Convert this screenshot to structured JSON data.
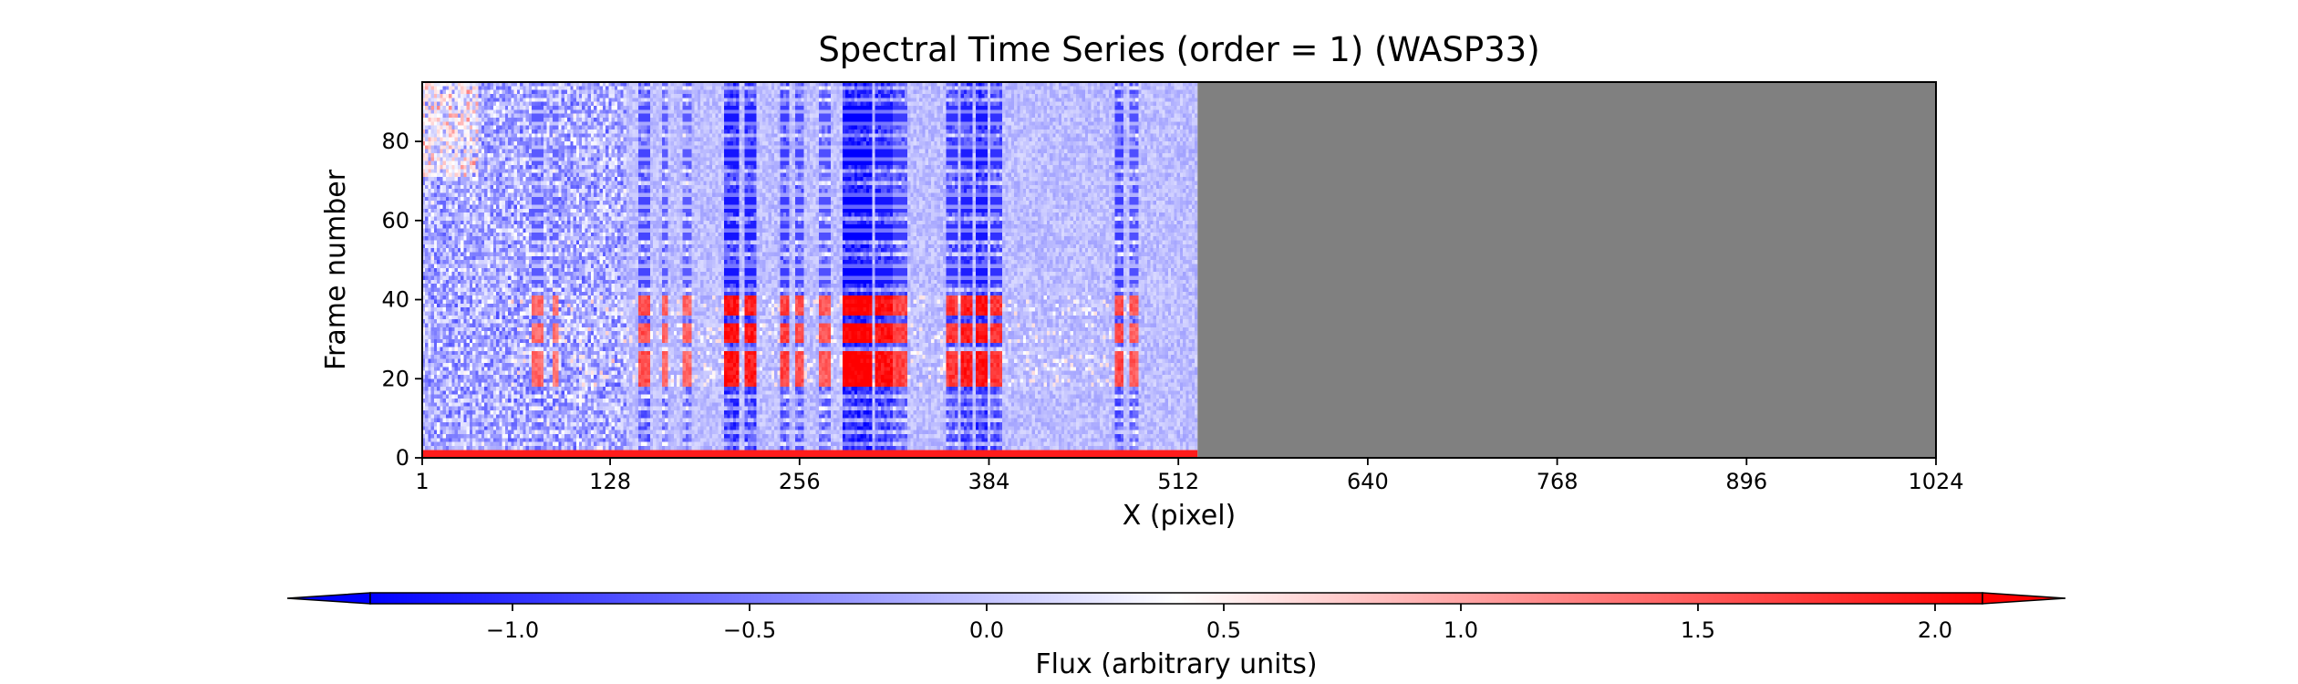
{
  "chart_data": {
    "type": "heatmap",
    "title": "Spectral Time Series (order = 1) (WASP33)",
    "xlabel": "X (pixel)",
    "ylabel": "Frame number",
    "xlim": [
      1,
      1024
    ],
    "ylim": [
      0,
      95
    ],
    "xticks": [
      1,
      128,
      256,
      384,
      512,
      640,
      768,
      896,
      1024
    ],
    "yticks": [
      0,
      20,
      40,
      60,
      80
    ],
    "data_x_range": [
      1,
      525
    ],
    "masked_x_range": [
      525,
      1024
    ],
    "masked_color": "#808080",
    "colorbar": {
      "label": "Flux (arbitrary units)",
      "vmin": -1.3,
      "vmax": 2.1,
      "ticks": [
        -1.0,
        -0.5,
        0.0,
        0.5,
        1.0,
        1.5,
        2.0
      ],
      "tick_labels": [
        "−1.0",
        "−0.5",
        "0.0",
        "0.5",
        "1.0",
        "1.5",
        "2.0"
      ],
      "center": 0.25,
      "colormap": "bwr",
      "extend": "both",
      "low_color": "#0000ff",
      "mid_color": "#ffffff",
      "high_color": "#ff0000"
    },
    "absorption_bands": [
      {
        "x": [
          76,
          82
        ],
        "depth": 0.6
      },
      {
        "x": [
          89,
          92
        ],
        "depth": 0.5
      },
      {
        "x": [
          148,
          155
        ],
        "depth": 0.8
      },
      {
        "x": [
          164,
          167
        ],
        "depth": 0.6
      },
      {
        "x": [
          178,
          182
        ],
        "depth": 0.6
      },
      {
        "x": [
          205,
          215
        ],
        "depth": 1.3
      },
      {
        "x": [
          220,
          226
        ],
        "depth": 1.2
      },
      {
        "x": [
          243,
          248
        ],
        "depth": 0.9
      },
      {
        "x": [
          254,
          258
        ],
        "depth": 0.8
      },
      {
        "x": [
          270,
          276
        ],
        "depth": 0.7
      },
      {
        "x": [
          285,
          305
        ],
        "depth": 1.5
      },
      {
        "x": [
          308,
          318
        ],
        "depth": 1.3
      },
      {
        "x": [
          320,
          328
        ],
        "depth": 0.9
      },
      {
        "x": [
          355,
          362
        ],
        "depth": 1.0
      },
      {
        "x": [
          366,
          372
        ],
        "depth": 1.2
      },
      {
        "x": [
          376,
          383
        ],
        "depth": 1.3
      },
      {
        "x": [
          386,
          392
        ],
        "depth": 1.0
      },
      {
        "x": [
          470,
          475
        ],
        "depth": 0.9
      },
      {
        "x": [
          480,
          484
        ],
        "depth": 0.7
      }
    ],
    "red_frames": [
      [
        18,
        22
      ],
      [
        23,
        26
      ],
      [
        29,
        33
      ],
      [
        36,
        40
      ]
    ],
    "blue_frames": [
      [
        44,
        48
      ],
      [
        55,
        58
      ],
      [
        62,
        66
      ],
      [
        74,
        78
      ],
      [
        84,
        88
      ]
    ]
  }
}
